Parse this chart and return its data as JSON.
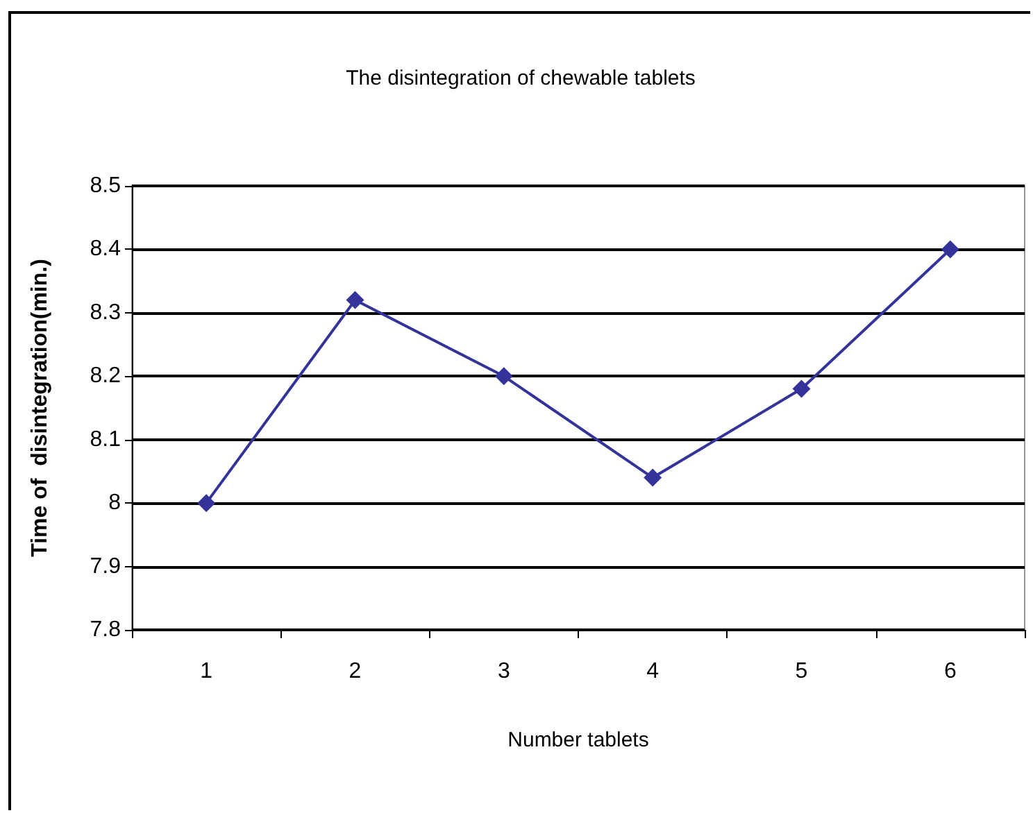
{
  "chart_data": {
    "type": "line",
    "title": "The disintegration of chewable tablets",
    "xlabel": "Number tablets",
    "ylabel": "Time of  disintegration(min.)",
    "categories": [
      "1",
      "2",
      "3",
      "4",
      "5",
      "6"
    ],
    "series": [
      {
        "color": "#333399",
        "values": [
          8.0,
          8.32,
          8.2,
          8.04,
          8.18,
          8.4
        ]
      }
    ],
    "ylim": [
      7.8,
      8.5
    ],
    "yticks": [
      7.8,
      7.9,
      8,
      8.1,
      8.2,
      8.3,
      8.4,
      8.5
    ],
    "grid": "y",
    "marker": "diamond",
    "line_style": "solid"
  }
}
